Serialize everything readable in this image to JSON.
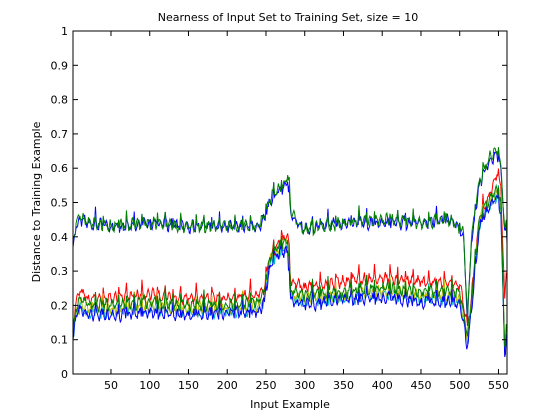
{
  "chart_data": {
    "type": "line",
    "title": "Nearness of Input Set to Training Set, size = 10",
    "xlabel": "Input Example",
    "ylabel": "Distance to Training Example",
    "xlim": [
      1,
      561
    ],
    "ylim": [
      0,
      1
    ],
    "xticks": [
      50,
      100,
      150,
      200,
      250,
      300,
      350,
      400,
      450,
      500,
      550
    ],
    "yticks": [
      0,
      0.1,
      0.2,
      0.3,
      0.4,
      0.5,
      0.6,
      0.7,
      0.8,
      0.9,
      1
    ],
    "ytick_labels": [
      "0",
      "0.1",
      "0.2",
      "0.3",
      "0.4",
      "0.5",
      "0.6",
      "0.7",
      "0.8",
      "0.9",
      "1"
    ],
    "grid": false,
    "series": [
      {
        "color": "#0000ff",
        "x": [
          1,
          5,
          10,
          20,
          50,
          100,
          150,
          200,
          240,
          248,
          255,
          265,
          272,
          278,
          282,
          290,
          300,
          350,
          400,
          450,
          490,
          505,
          510,
          515,
          525,
          540,
          548,
          553,
          558,
          561
        ],
        "y": [
          0.37,
          0.43,
          0.45,
          0.44,
          0.43,
          0.44,
          0.43,
          0.43,
          0.43,
          0.45,
          0.5,
          0.53,
          0.54,
          0.56,
          0.47,
          0.44,
          0.42,
          0.44,
          0.44,
          0.44,
          0.45,
          0.4,
          0.15,
          0.38,
          0.55,
          0.63,
          0.64,
          0.6,
          0.42,
          0.38
        ]
      },
      {
        "color": "#007f00",
        "x": [
          1,
          5,
          10,
          20,
          50,
          100,
          150,
          200,
          240,
          248,
          255,
          265,
          272,
          278,
          282,
          290,
          300,
          350,
          400,
          450,
          490,
          505,
          510,
          515,
          525,
          540,
          548,
          553,
          558,
          561
        ],
        "y": [
          0.38,
          0.44,
          0.46,
          0.44,
          0.43,
          0.44,
          0.43,
          0.43,
          0.43,
          0.46,
          0.51,
          0.54,
          0.55,
          0.58,
          0.48,
          0.44,
          0.42,
          0.44,
          0.45,
          0.44,
          0.45,
          0.41,
          0.16,
          0.39,
          0.56,
          0.64,
          0.65,
          0.61,
          0.43,
          0.39
        ]
      },
      {
        "color": "#ff0000",
        "x": [
          1,
          5,
          10,
          20,
          50,
          100,
          150,
          200,
          240,
          248,
          255,
          265,
          272,
          278,
          282,
          290,
          300,
          350,
          400,
          450,
          500,
          510,
          515,
          525,
          540,
          548,
          553,
          558,
          561
        ],
        "y": [
          0.15,
          0.21,
          0.24,
          0.22,
          0.22,
          0.23,
          0.22,
          0.22,
          0.23,
          0.25,
          0.34,
          0.38,
          0.39,
          0.41,
          0.27,
          0.26,
          0.25,
          0.27,
          0.28,
          0.27,
          0.26,
          0.14,
          0.22,
          0.45,
          0.53,
          0.58,
          0.55,
          0.22,
          0.28
        ]
      },
      {
        "color": "#00bfbf",
        "x": [
          1,
          5,
          10,
          20,
          50,
          100,
          150,
          200,
          240,
          248,
          255,
          265,
          272,
          278,
          282,
          290,
          300,
          350,
          400,
          450,
          500,
          510,
          515,
          525,
          540,
          548,
          553,
          558,
          561
        ],
        "y": [
          0.11,
          0.17,
          0.2,
          0.18,
          0.18,
          0.19,
          0.18,
          0.18,
          0.19,
          0.22,
          0.32,
          0.35,
          0.36,
          0.37,
          0.22,
          0.22,
          0.21,
          0.22,
          0.23,
          0.22,
          0.22,
          0.09,
          0.19,
          0.43,
          0.5,
          0.52,
          0.48,
          0.06,
          0.1
        ]
      },
      {
        "color": "#bfbf00",
        "x": [
          1,
          5,
          10,
          20,
          50,
          100,
          150,
          200,
          240,
          248,
          255,
          265,
          272,
          278,
          282,
          290,
          300,
          350,
          400,
          450,
          500,
          510,
          515,
          525,
          540,
          548,
          553,
          558,
          561
        ],
        "y": [
          0.12,
          0.18,
          0.21,
          0.19,
          0.19,
          0.2,
          0.19,
          0.19,
          0.2,
          0.23,
          0.33,
          0.36,
          0.37,
          0.38,
          0.23,
          0.23,
          0.22,
          0.23,
          0.24,
          0.23,
          0.23,
          0.1,
          0.2,
          0.44,
          0.51,
          0.53,
          0.49,
          0.07,
          0.11
        ]
      },
      {
        "color": "#0000ff",
        "x": [
          1,
          5,
          10,
          20,
          50,
          100,
          150,
          200,
          240,
          248,
          255,
          265,
          272,
          278,
          282,
          290,
          300,
          350,
          400,
          450,
          500,
          510,
          515,
          525,
          540,
          548,
          553,
          558,
          561
        ],
        "y": [
          0.1,
          0.17,
          0.19,
          0.17,
          0.17,
          0.18,
          0.17,
          0.18,
          0.18,
          0.21,
          0.31,
          0.35,
          0.35,
          0.36,
          0.22,
          0.21,
          0.2,
          0.22,
          0.22,
          0.21,
          0.21,
          0.08,
          0.18,
          0.42,
          0.5,
          0.52,
          0.47,
          0.05,
          0.09
        ]
      },
      {
        "color": "#007f00",
        "x": [
          1,
          5,
          10,
          20,
          50,
          100,
          150,
          200,
          240,
          248,
          255,
          265,
          272,
          278,
          282,
          290,
          300,
          350,
          400,
          450,
          500,
          510,
          515,
          525,
          540,
          548,
          553,
          558,
          561
        ],
        "y": [
          0.13,
          0.19,
          0.22,
          0.2,
          0.2,
          0.21,
          0.2,
          0.2,
          0.21,
          0.24,
          0.34,
          0.37,
          0.38,
          0.39,
          0.24,
          0.24,
          0.23,
          0.24,
          0.25,
          0.24,
          0.24,
          0.11,
          0.21,
          0.45,
          0.52,
          0.54,
          0.5,
          0.08,
          0.12
        ]
      }
    ]
  }
}
